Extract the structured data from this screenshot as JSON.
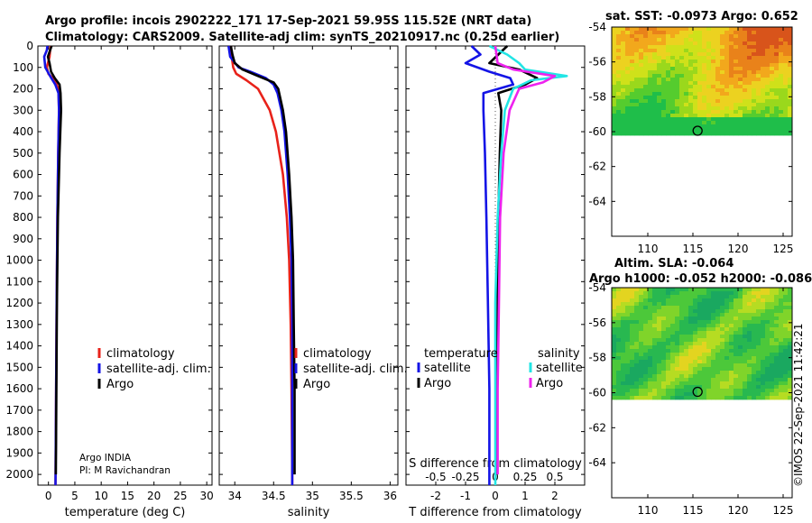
{
  "header": {
    "line1": "Argo profile: incois 2902222_171 17-Sep-2021 59.95S 115.52E (NRT data)",
    "line2": "Climatology: CARS2009. Satellite-adj clim: synTS_20210917.nc (0.25d earlier)"
  },
  "colors": {
    "climatology": "#e8221a",
    "satellite": "#1414e6",
    "argo": "#000000",
    "sat_s": "#22e5e5",
    "argo_s": "#ee22ee"
  },
  "depth_ticks": [
    "0",
    "100",
    "200",
    "300",
    "400",
    "500",
    "600",
    "700",
    "800",
    "900",
    "1000",
    "1100",
    "1200",
    "1300",
    "1400",
    "1500",
    "1600",
    "1700",
    "1800",
    "1900",
    "2000"
  ],
  "chart_data": [
    {
      "type": "line",
      "title": "",
      "xlabel": "temperature (deg C)",
      "ylabel": "depth",
      "xlim": [
        -2,
        31
      ],
      "ylim": [
        2050,
        0
      ],
      "xticks": [
        "0",
        "5",
        "10",
        "15",
        "20",
        "25",
        "30"
      ],
      "xtick_values": [
        0,
        5,
        10,
        15,
        20,
        25,
        30
      ],
      "legend": [
        "climatology",
        "satellite-adj. clim.",
        "Argo"
      ],
      "footnote": [
        "Argo INDIA",
        "PI: M Ravichandran"
      ],
      "series": [
        {
          "name": "climatology",
          "depth": [
            0,
            50,
            100,
            130,
            160,
            200,
            300,
            500,
            800,
            1200,
            1600,
            2000,
            2050
          ],
          "values": [
            0.4,
            0.2,
            -0.3,
            0.0,
            1.2,
            1.9,
            2.0,
            1.85,
            1.7,
            1.55,
            1.45,
            1.35,
            1.33
          ]
        },
        {
          "name": "satellite-adj. clim.",
          "depth": [
            0,
            20,
            50,
            100,
            140,
            180,
            220,
            300,
            500,
            800,
            1200,
            1600,
            2000,
            2050
          ],
          "values": [
            -0.2,
            -0.3,
            -0.8,
            -0.6,
            0.3,
            1.3,
            1.9,
            2.0,
            1.85,
            1.7,
            1.55,
            1.45,
            1.35,
            1.33
          ]
        },
        {
          "name": "Argo",
          "depth": [
            0,
            20,
            50,
            80,
            120,
            150,
            180,
            220,
            300,
            500,
            800,
            1200,
            1600,
            2000
          ],
          "values": [
            0.6,
            0.3,
            -0.1,
            0.2,
            0.5,
            1.2,
            2.1,
            2.3,
            2.4,
            2.1,
            1.8,
            1.6,
            1.5,
            1.4
          ]
        }
      ]
    },
    {
      "type": "line",
      "title": "",
      "xlabel": "salinity",
      "ylabel": "depth",
      "xlim": [
        33.8,
        36.1
      ],
      "ylim": [
        2050,
        0
      ],
      "xticks": [
        "34",
        "34.5",
        "35",
        "35.5",
        "36"
      ],
      "xtick_values": [
        34,
        34.5,
        35,
        35.5,
        36
      ],
      "legend": [
        "climatology",
        "satellite-adj. clim.",
        "Argo"
      ],
      "series": [
        {
          "name": "climatology",
          "depth": [
            0,
            50,
            100,
            130,
            160,
            200,
            300,
            400,
            600,
            800,
            1000,
            1300,
            1600,
            2000,
            2050
          ],
          "values": [
            33.95,
            33.96,
            33.98,
            34.02,
            34.15,
            34.3,
            34.45,
            34.53,
            34.62,
            34.67,
            34.7,
            34.72,
            34.73,
            34.74,
            34.74
          ]
        },
        {
          "name": "satellite-adj. clim.",
          "depth": [
            0,
            50,
            100,
            120,
            150,
            180,
            220,
            300,
            400,
            600,
            800,
            1000,
            1300,
            1600,
            2000,
            2050
          ],
          "values": [
            33.92,
            33.94,
            34.05,
            34.2,
            34.4,
            34.5,
            34.55,
            34.6,
            34.64,
            34.68,
            34.71,
            34.73,
            34.74,
            34.74,
            34.74,
            34.74
          ]
        },
        {
          "name": "Argo",
          "depth": [
            0,
            40,
            80,
            110,
            140,
            170,
            200,
            300,
            400,
            600,
            800,
            1000,
            1300,
            1600,
            2000
          ],
          "values": [
            33.95,
            33.97,
            34.0,
            34.1,
            34.3,
            34.5,
            34.56,
            34.62,
            34.66,
            34.7,
            34.73,
            34.75,
            34.76,
            34.77,
            34.77
          ]
        }
      ]
    },
    {
      "type": "line",
      "title": "",
      "xlabel": "T difference from climatology",
      "xlabel2": "S difference from climatology",
      "ylabel": "depth",
      "xlim": [
        -3,
        3
      ],
      "ylim": [
        2050,
        0
      ],
      "xticks": [
        "-2",
        "-1",
        "0",
        "1",
        "2"
      ],
      "xtick_values": [
        -2,
        -1,
        0,
        1,
        2
      ],
      "xticks2": [
        "-0.5",
        "-0.25",
        "0",
        "0.25",
        "0.5"
      ],
      "xtick2_values": [
        -0.5,
        -0.25,
        0,
        0.25,
        0.5
      ],
      "legend_temperature_title": "temperature",
      "legend_salinity_title": "salinity",
      "legend": [
        "satellite",
        "Argo",
        "satellite",
        "Argo"
      ],
      "series": [
        {
          "name": "temperature satellite",
          "depth": [
            0,
            40,
            80,
            120,
            150,
            180,
            220,
            300,
            500,
            800,
            1200,
            1600,
            2000,
            2050
          ],
          "values": [
            -0.8,
            -0.5,
            -1.0,
            -0.2,
            0.5,
            0.6,
            -0.4,
            -0.4,
            -0.35,
            -0.3,
            -0.25,
            -0.2,
            -0.2,
            -0.2
          ]
        },
        {
          "name": "temperature Argo",
          "depth": [
            0,
            40,
            80,
            110,
            150,
            180,
            220,
            300,
            500,
            800,
            1200,
            1600,
            2000
          ],
          "values": [
            0.4,
            0.1,
            -0.2,
            0.8,
            1.4,
            1.0,
            0.1,
            0.2,
            0.15,
            0.1,
            0.08,
            0.05,
            0.05
          ]
        },
        {
          "name": "salinity satellite",
          "depth": [
            0,
            40,
            80,
            110,
            140,
            160,
            200,
            300,
            500,
            800,
            1200,
            1600,
            2000,
            2050
          ],
          "values": [
            -0.05,
            0.1,
            0.2,
            0.25,
            0.6,
            0.3,
            0.15,
            0.08,
            0.05,
            0.02,
            0.0,
            0.0,
            0.0,
            0.0
          ]
        },
        {
          "name": "salinity Argo",
          "depth": [
            0,
            40,
            80,
            110,
            140,
            170,
            200,
            300,
            500,
            800,
            1200,
            1600,
            2000
          ],
          "values": [
            0.0,
            0.01,
            0.02,
            0.15,
            0.5,
            0.4,
            0.2,
            0.12,
            0.07,
            0.04,
            0.03,
            0.02,
            0.02
          ]
        }
      ]
    },
    {
      "type": "heatmap",
      "title": "sat. SST: -0.0973 Argo: 0.652",
      "xlim": [
        106,
        126
      ],
      "ylim": [
        -66,
        -54
      ],
      "xticks": [
        "110",
        "115",
        "120",
        "125"
      ],
      "xtick_values": [
        110,
        115,
        120,
        125
      ],
      "yticks": [
        "-54",
        "-56",
        "-58",
        "-60",
        "-62",
        "-64"
      ],
      "ytick_values": [
        -54,
        -56,
        -58,
        -60,
        -62,
        -64
      ],
      "data_lat_min": -60.2,
      "marker": {
        "lon": 115.52,
        "lat": -59.95
      }
    },
    {
      "type": "heatmap",
      "title": "Altim. SLA: -0.064",
      "subtitle": "Argo h1000: -0.052 h2000: -0.086",
      "xlim": [
        106,
        126
      ],
      "ylim": [
        -66,
        -54
      ],
      "xticks": [
        "110",
        "115",
        "120",
        "125"
      ],
      "xtick_values": [
        110,
        115,
        120,
        125
      ],
      "yticks": [
        "-54",
        "-56",
        "-58",
        "-60",
        "-62",
        "-64"
      ],
      "ytick_values": [
        -54,
        -56,
        -58,
        -60,
        -62,
        -64
      ],
      "data_lat_min": -60.2,
      "marker": {
        "lon": 115.52,
        "lat": -59.95
      }
    }
  ],
  "credit": "©IMOS 22-Sep-2021 11:42:21"
}
